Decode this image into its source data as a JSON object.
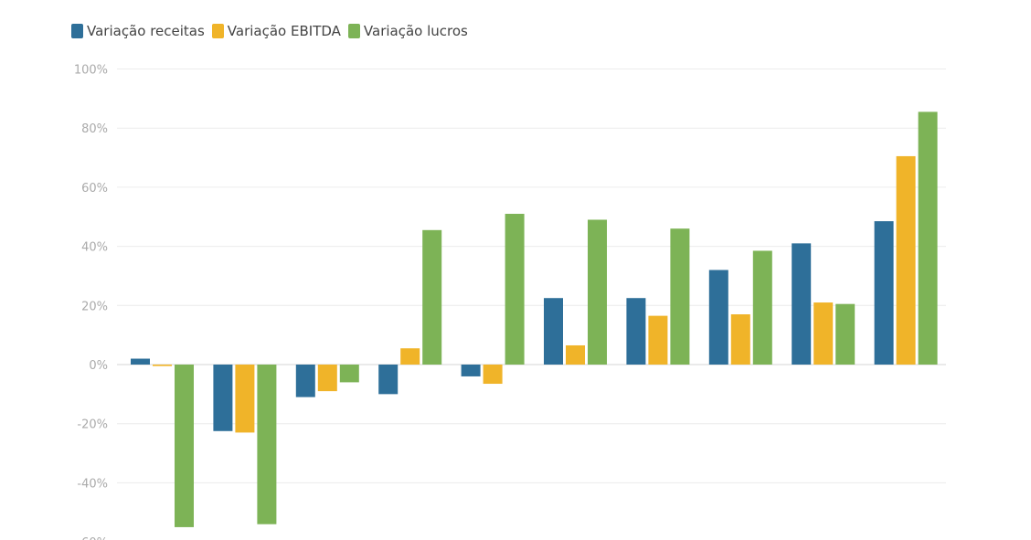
{
  "chart_data": {
    "type": "bar",
    "legend_position": "top-left",
    "grid": true,
    "ylim": [
      -60,
      100
    ],
    "yticks": [
      100,
      80,
      60,
      40,
      20,
      0,
      -20,
      -40,
      -60
    ],
    "series": [
      {
        "name": "Variação receitas",
        "color": "#2e6f99",
        "values": [
          2,
          -22.5,
          -11,
          -10,
          -4,
          22.5,
          22.5,
          32,
          41,
          48.5
        ]
      },
      {
        "name": "Variação EBITDA",
        "color": "#f0b429",
        "values": [
          -0.5,
          -23,
          -9,
          5.5,
          -6.5,
          6.5,
          16.5,
          17,
          21,
          70.5
        ]
      },
      {
        "name": "Variação lucros",
        "color": "#7db356",
        "values": [
          -55,
          -54,
          -6,
          45.5,
          51,
          49,
          46,
          38.5,
          20.5,
          85.5
        ]
      }
    ]
  }
}
